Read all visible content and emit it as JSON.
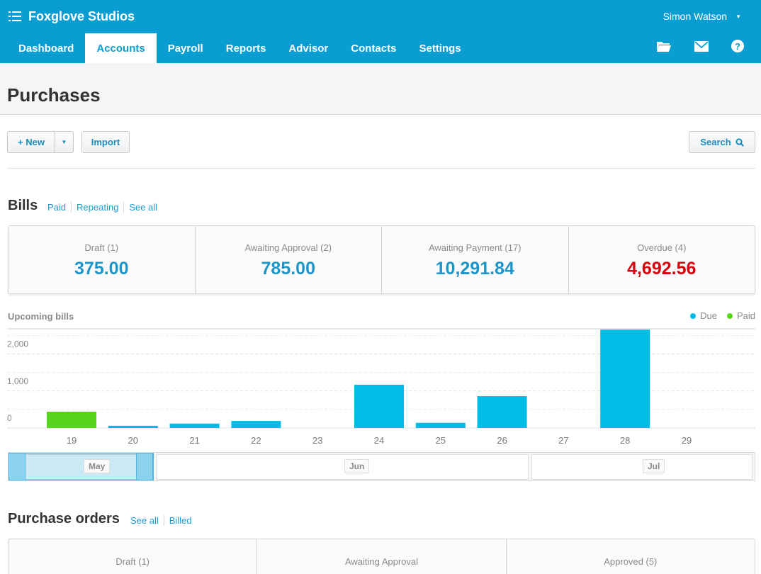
{
  "header": {
    "brand": "Foxglove Studios",
    "user": "Simon Watson",
    "tabs": [
      {
        "label": "Dashboard",
        "active": false
      },
      {
        "label": "Accounts",
        "active": true
      },
      {
        "label": "Payroll",
        "active": false
      },
      {
        "label": "Reports",
        "active": false
      },
      {
        "label": "Advisor",
        "active": false
      },
      {
        "label": "Contacts",
        "active": false
      },
      {
        "label": "Settings",
        "active": false
      }
    ],
    "icons": [
      "folder-icon",
      "mail-icon",
      "help-icon"
    ]
  },
  "page": {
    "title": "Purchases"
  },
  "toolbar": {
    "new_label": "+ New",
    "import_label": "Import",
    "search_label": "Search"
  },
  "bills": {
    "title": "Bills",
    "links": [
      "Paid",
      "Repeating",
      "See all"
    ],
    "cards": [
      {
        "label": "Draft (1)",
        "value": "375.00",
        "overdue": false
      },
      {
        "label": "Awaiting Approval (2)",
        "value": "785.00",
        "overdue": false
      },
      {
        "label": "Awaiting Payment (17)",
        "value": "10,291.84",
        "overdue": false
      },
      {
        "label": "Overdue (4)",
        "value": "4,692.56",
        "overdue": true
      }
    ]
  },
  "chart_data": {
    "type": "bar",
    "title": "Upcoming bills",
    "categories": [
      "19",
      "20",
      "21",
      "22",
      "23",
      "24",
      "25",
      "26",
      "27",
      "28",
      "29"
    ],
    "series": [
      {
        "name": "Due",
        "color": "#00bce6",
        "values": [
          0,
          60,
          120,
          190,
          0,
          1170,
          140,
          860,
          0,
          2660,
          0
        ]
      },
      {
        "name": "Paid",
        "color": "#57d51c",
        "values": [
          440,
          0,
          0,
          0,
          0,
          0,
          0,
          0,
          0,
          0,
          0
        ]
      }
    ],
    "yticks": [
      0,
      1000,
      2000
    ],
    "ytick_labels": [
      "0",
      "1,000",
      "2,000"
    ],
    "ylim": [
      0,
      2700
    ],
    "legend": "top-right",
    "grid": true
  },
  "range_nav": {
    "months": [
      "May",
      "Jun",
      "Jul"
    ]
  },
  "purchase_orders": {
    "title": "Purchase orders",
    "links": [
      "See all",
      "Billed"
    ],
    "cards": [
      "Draft (1)",
      "Awaiting Approval",
      "Approved (5)"
    ]
  },
  "colors": {
    "brand": "#0a9dd2",
    "link": "#1a9bd0",
    "overdue": "#d8000c",
    "due": "#00bce6",
    "paid": "#57d51c"
  }
}
